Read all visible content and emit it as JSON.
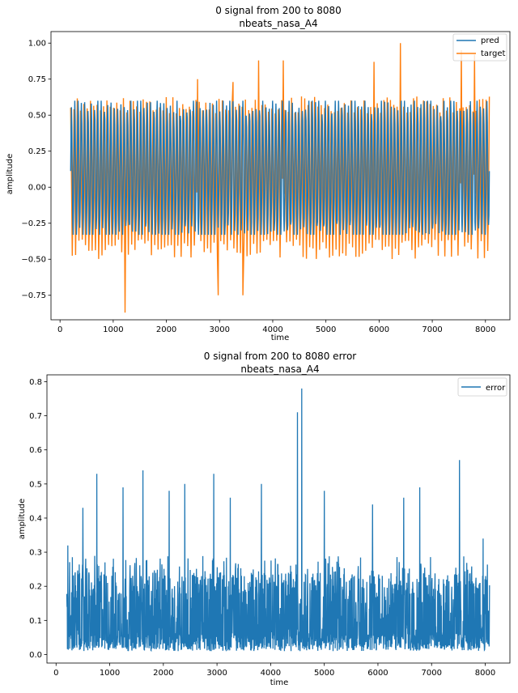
{
  "chart_data": [
    {
      "type": "line",
      "title": "0 signal from 200 to 8080",
      "subtitle": "nbeats_nasa_A4",
      "xlabel": "time",
      "ylabel": "amplitude",
      "xlim": [
        -170,
        8460
      ],
      "ylim": [
        -0.92,
        1.08
      ],
      "xticks": [
        0,
        1000,
        2000,
        3000,
        4000,
        5000,
        6000,
        7000,
        8000
      ],
      "yticks": [
        -0.75,
        -0.5,
        -0.25,
        0.0,
        0.25,
        0.5,
        0.75,
        1.0
      ],
      "ytick_labels": [
        "−0.75",
        "−0.50",
        "−0.25",
        "0.00",
        "0.25",
        "0.50",
        "0.75",
        "1.00"
      ],
      "grid": false,
      "legend_position": "top-right",
      "series": [
        {
          "name": "pred",
          "color": "#1f77b4",
          "x_range": [
            200,
            8080
          ],
          "typical_min": -0.33,
          "typical_max": 0.6
        },
        {
          "name": "target",
          "color": "#ff7f0e",
          "x_range": [
            200,
            8080
          ],
          "typical_min": -0.5,
          "typical_max": 0.63,
          "spikes": [
            {
              "x": 1230,
              "y": -0.87
            },
            {
              "x": 2980,
              "y": -0.75
            },
            {
              "x": 3440,
              "y": -0.75
            },
            {
              "x": 4200,
              "y": 0.88
            },
            {
              "x": 3730,
              "y": 0.88
            },
            {
              "x": 6400,
              "y": 1.0
            },
            {
              "x": 5900,
              "y": 0.87
            },
            {
              "x": 7550,
              "y": 0.95
            },
            {
              "x": 7800,
              "y": 0.92
            },
            {
              "x": 2580,
              "y": 0.75
            },
            {
              "x": 3260,
              "y": 0.73
            }
          ]
        }
      ]
    },
    {
      "type": "line",
      "title": "0 signal from 200 to 8080  error",
      "subtitle": "nbeats_nasa_A4",
      "xlabel": "time",
      "ylabel": "amplitude",
      "xlim": [
        -170,
        8460
      ],
      "ylim": [
        -0.025,
        0.82
      ],
      "xticks": [
        0,
        1000,
        2000,
        3000,
        4000,
        5000,
        6000,
        7000,
        8000
      ],
      "yticks": [
        0.0,
        0.1,
        0.2,
        0.3,
        0.4,
        0.5,
        0.6,
        0.7,
        0.8
      ],
      "ytick_labels": [
        "0.0",
        "0.1",
        "0.2",
        "0.3",
        "0.4",
        "0.5",
        "0.6",
        "0.7",
        "0.8"
      ],
      "grid": false,
      "legend_position": "top-right",
      "series": [
        {
          "name": "error",
          "color": "#1f77b4",
          "x_range": [
            200,
            8080
          ],
          "baseline": 0.01,
          "typical_max": 0.24,
          "spikes": [
            {
              "x": 220,
              "y": 0.32
            },
            {
              "x": 500,
              "y": 0.43
            },
            {
              "x": 760,
              "y": 0.53
            },
            {
              "x": 1250,
              "y": 0.49
            },
            {
              "x": 1620,
              "y": 0.54
            },
            {
              "x": 2110,
              "y": 0.48
            },
            {
              "x": 2400,
              "y": 0.5
            },
            {
              "x": 2940,
              "y": 0.53
            },
            {
              "x": 3250,
              "y": 0.46
            },
            {
              "x": 3830,
              "y": 0.5
            },
            {
              "x": 4500,
              "y": 0.71
            },
            {
              "x": 4580,
              "y": 0.78
            },
            {
              "x": 5000,
              "y": 0.48
            },
            {
              "x": 5900,
              "y": 0.44
            },
            {
              "x": 6480,
              "y": 0.46
            },
            {
              "x": 6780,
              "y": 0.49
            },
            {
              "x": 7520,
              "y": 0.57
            },
            {
              "x": 7960,
              "y": 0.34
            }
          ]
        }
      ]
    }
  ]
}
